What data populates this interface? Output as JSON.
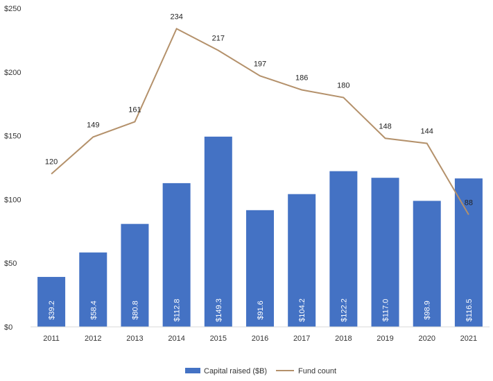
{
  "chart_data": {
    "type": "bar",
    "categories": [
      "2011",
      "2012",
      "2013",
      "2014",
      "2015",
      "2016",
      "2017",
      "2018",
      "2019",
      "2020",
      "2021"
    ],
    "series": [
      {
        "name": "Capital raised ($B)",
        "type": "bar",
        "axis": "left",
        "color": "#4472C4",
        "values": [
          39.2,
          58.4,
          80.8,
          112.8,
          149.3,
          91.6,
          104.2,
          122.2,
          117.0,
          98.9,
          116.5
        ],
        "labels": [
          "$39.2",
          "$58.4",
          "$80.8",
          "$112.8",
          "$149.3",
          "$91.6",
          "$104.2",
          "$122.2",
          "$117.0",
          "$98.9",
          "$116.5"
        ]
      },
      {
        "name": "Fund count",
        "type": "line",
        "axis": "left",
        "color": "#B4916B",
        "values": [
          120,
          149,
          161,
          234,
          217,
          197,
          186,
          180,
          148,
          144,
          88
        ],
        "labels": [
          "120",
          "149",
          "161",
          "234",
          "217",
          "197",
          "186",
          "180",
          "148",
          "144",
          "88"
        ]
      }
    ],
    "y_ticks": [
      "$0",
      "$50",
      "$100",
      "$150",
      "$200",
      "$250"
    ],
    "ylim": [
      0,
      250
    ],
    "grid": false,
    "legend_position": "bottom",
    "title": "",
    "xlabel": "",
    "ylabel": ""
  }
}
